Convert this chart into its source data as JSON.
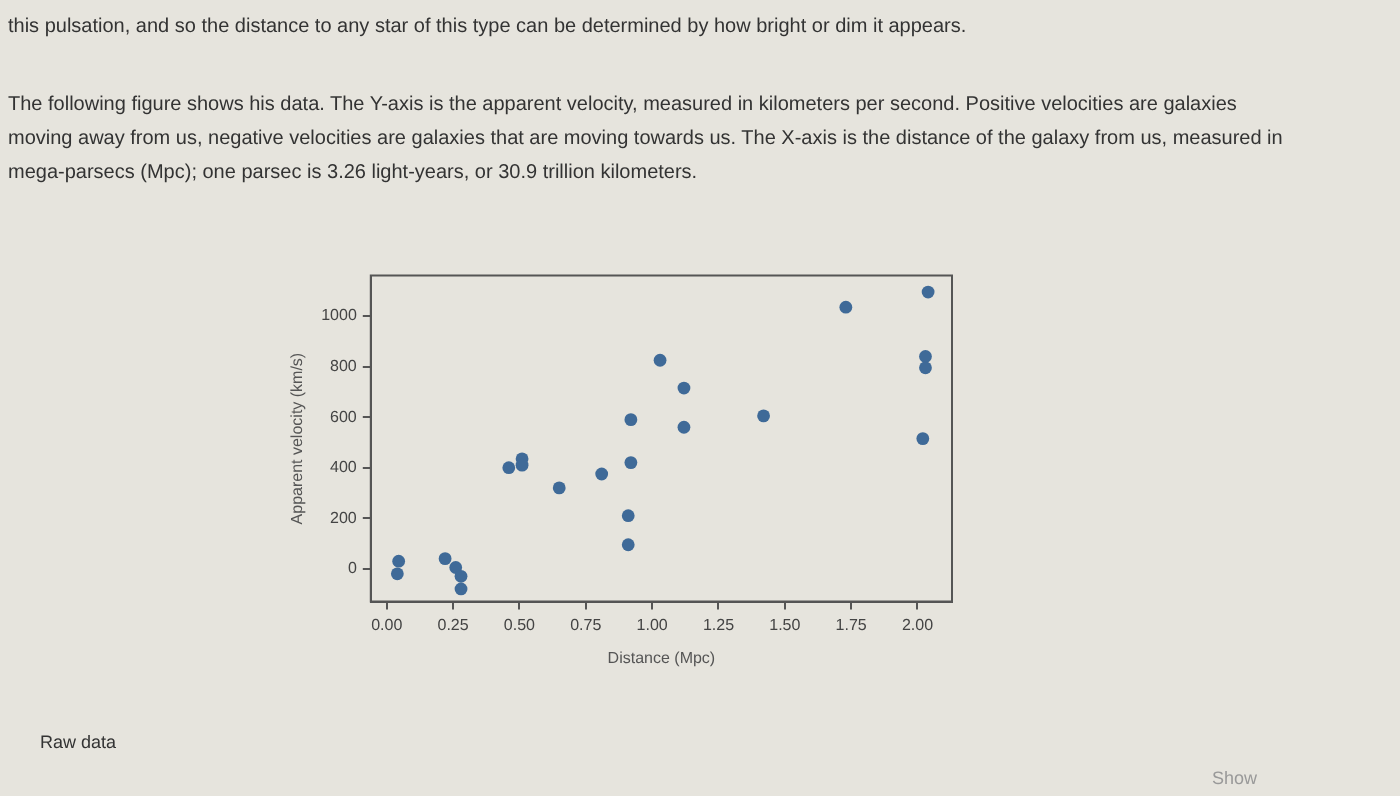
{
  "chart_data": {
    "type": "scatter",
    "xlabel": "Distance (Mpc)",
    "ylabel": "Apparent velocity (km/s)",
    "x": [
      0.045,
      0.04,
      0.22,
      0.26,
      0.28,
      0.28,
      0.46,
      0.51,
      0.51,
      0.65,
      0.81,
      0.91,
      0.91,
      0.92,
      0.92,
      1.03,
      1.12,
      1.12,
      1.42,
      1.73,
      2.04,
      2.03,
      2.03,
      2.02
    ],
    "series": [
      {
        "color": "#3f6a98",
        "values": [
          30,
          -20,
          40,
          5,
          -30,
          -80,
          400,
          435,
          410,
          320,
          375,
          210,
          95,
          420,
          590,
          825,
          715,
          560,
          605,
          1035,
          1095,
          840,
          795,
          515
        ]
      }
    ],
    "xlim": [
      -0.06,
      2.13
    ],
    "ylim": [
      -130,
      1160
    ],
    "xticks": [
      {
        "value": 0,
        "label": "0.00"
      },
      {
        "value": 0.25,
        "label": "0.25"
      },
      {
        "value": 0.5,
        "label": "0.50"
      },
      {
        "value": 0.75,
        "label": "0.75"
      },
      {
        "value": 1,
        "label": "1.00"
      },
      {
        "value": 1.25,
        "label": "1.25"
      },
      {
        "value": 1.5,
        "label": "1.50"
      },
      {
        "value": 1.75,
        "label": "1.75"
      },
      {
        "value": 2,
        "label": "2.00"
      }
    ],
    "yticks": [
      0,
      200,
      400,
      600,
      800,
      1000
    ],
    "grid": false,
    "legend": false,
    "marker": "circle",
    "annotations": [
      "this pulsation, and so the distance to any star of this type can be determined by how bright or dim it appears.",
      "The following figure shows his data. The Y-axis is the apparent velocity, measured in kilometers per second. Positive velocities are galaxies moving away from us, negative velocities are galaxies that are moving towards us. The X-axis is the distance of the galaxy from us, measured in mega-parsecs (Mpc); one parsec is 3.26 light-years, or 30.9 trillion kilometers.",
      "Raw data",
      "Show"
    ]
  }
}
